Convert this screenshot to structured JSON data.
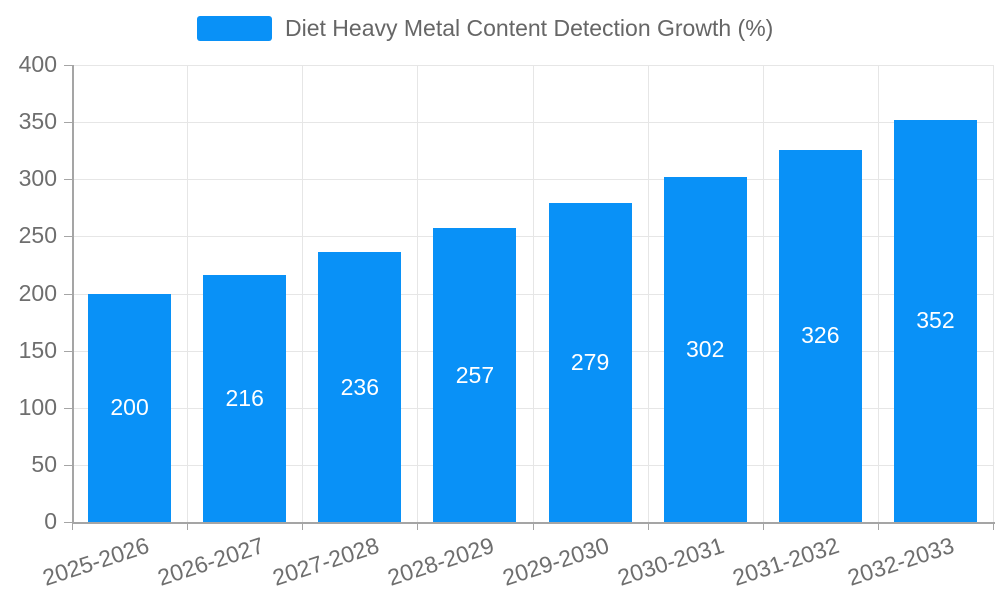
{
  "chart_data": {
    "type": "bar",
    "title": "Diet Heavy Metal Content Detection Growth (%)",
    "categories": [
      "2025-2026",
      "2026-2027",
      "2027-2028",
      "2028-2029",
      "2029-2030",
      "2030-2031",
      "2031-2032",
      "2032-2033"
    ],
    "values": [
      200,
      216,
      236,
      257,
      279,
      302,
      326,
      352
    ],
    "xlabel": "",
    "ylabel": "",
    "ylim": [
      0,
      400
    ],
    "yticks": [
      0,
      50,
      100,
      150,
      200,
      250,
      300,
      350,
      400
    ],
    "grid": true,
    "legend_position": "top-center",
    "value_label_position": "inside-middle",
    "colors": {
      "bar": "#0991f7",
      "value_label": "#ffffff",
      "axis_line": "#a5a5a5",
      "grid_line": "#e6e6e6",
      "tick_text": "#6e6e6e",
      "legend_text": "#666666",
      "background": "#ffffff"
    }
  }
}
